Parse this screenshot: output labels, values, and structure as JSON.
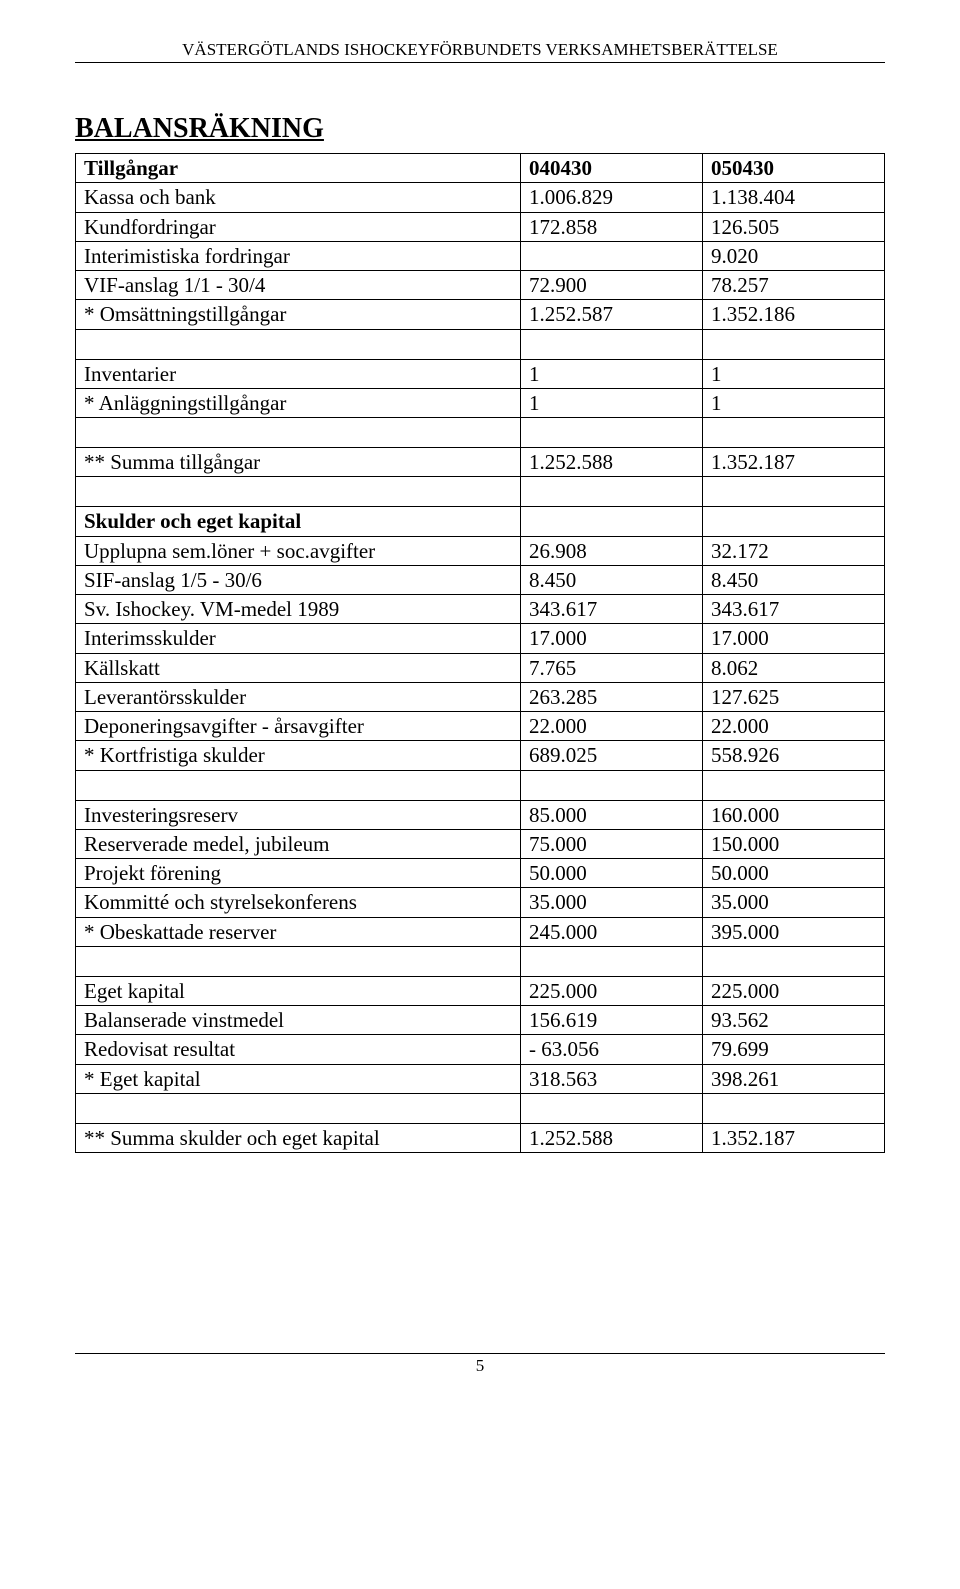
{
  "header": "VÄSTERGÖTLANDS ISHOCKEYFÖRBUNDETS VERKSAMHETSBERÄTTELSE",
  "title": "BALANSRÄKNING",
  "page_number": "5",
  "table": {
    "columns": [
      "",
      "040430",
      "050430"
    ],
    "rows": [
      {
        "label": "Tillgångar",
        "c1": "040430",
        "c2": "050430",
        "bold": true
      },
      {
        "label": "Kassa och bank",
        "c1": "1.006.829",
        "c2": "1.138.404"
      },
      {
        "label": "Kundfordringar",
        "c1": "172.858",
        "c2": "126.505"
      },
      {
        "label": "Interimistiska fordringar",
        "c1": "",
        "c2": "9.020"
      },
      {
        "label": "VIF-anslag 1/1 - 30/4",
        "c1": "72.900",
        "c2": "78.257"
      },
      {
        "label": "* Omsättningstillgångar",
        "c1": "1.252.587",
        "c2": "1.352.186"
      },
      {
        "spacer": true
      },
      {
        "label": "Inventarier",
        "c1": "1",
        "c2": "1"
      },
      {
        "label": "* Anläggningstillgångar",
        "c1": "1",
        "c2": "1"
      },
      {
        "spacer": true
      },
      {
        "label": "** Summa tillgångar",
        "c1": "1.252.588",
        "c2": "1.352.187"
      },
      {
        "spacer": true
      },
      {
        "label": "Skulder och eget kapital",
        "c1": "",
        "c2": "",
        "bold": true
      },
      {
        "label": "Upplupna sem.löner + soc.avgifter",
        "c1": "26.908",
        "c2": "32.172"
      },
      {
        "label": "SIF-anslag 1/5 - 30/6",
        "c1": "8.450",
        "c2": "8.450"
      },
      {
        "label": "Sv. Ishockey. VM-medel 1989",
        "c1": "343.617",
        "c2": "343.617"
      },
      {
        "label": "Interimsskulder",
        "c1": "17.000",
        "c2": "17.000"
      },
      {
        "label": "Källskatt",
        "c1": "7.765",
        "c2": "8.062"
      },
      {
        "label": "Leverantörsskulder",
        "c1": "263.285",
        "c2": "127.625"
      },
      {
        "label": "Deponeringsavgifter - årsavgifter",
        "c1": "22.000",
        "c2": "22.000"
      },
      {
        "label": "* Kortfristiga skulder",
        "c1": "689.025",
        "c2": "558.926"
      },
      {
        "spacer": true
      },
      {
        "label": "Investeringsreserv",
        "c1": "85.000",
        "c2": "160.000"
      },
      {
        "label": "Reserverade medel, jubileum",
        "c1": "75.000",
        "c2": "150.000"
      },
      {
        "label": "Projekt förening",
        "c1": "50.000",
        "c2": "50.000"
      },
      {
        "label": "Kommitté och styrelsekonferens",
        "c1": "35.000",
        "c2": "35.000"
      },
      {
        "label": "* Obeskattade reserver",
        "c1": "245.000",
        "c2": "395.000"
      },
      {
        "spacer": true
      },
      {
        "label": "Eget kapital",
        "c1": "225.000",
        "c2": "225.000"
      },
      {
        "label": "Balanserade vinstmedel",
        "c1": "156.619",
        "c2": "93.562"
      },
      {
        "label": "Redovisat resultat",
        "c1": "- 63.056",
        "c2": "79.699"
      },
      {
        "label": "* Eget kapital",
        "c1": "318.563",
        "c2": "398.261"
      },
      {
        "spacer": true
      },
      {
        "label": "** Summa skulder och eget kapital",
        "c1": "1.252.588",
        "c2": "1.352.187"
      }
    ]
  }
}
